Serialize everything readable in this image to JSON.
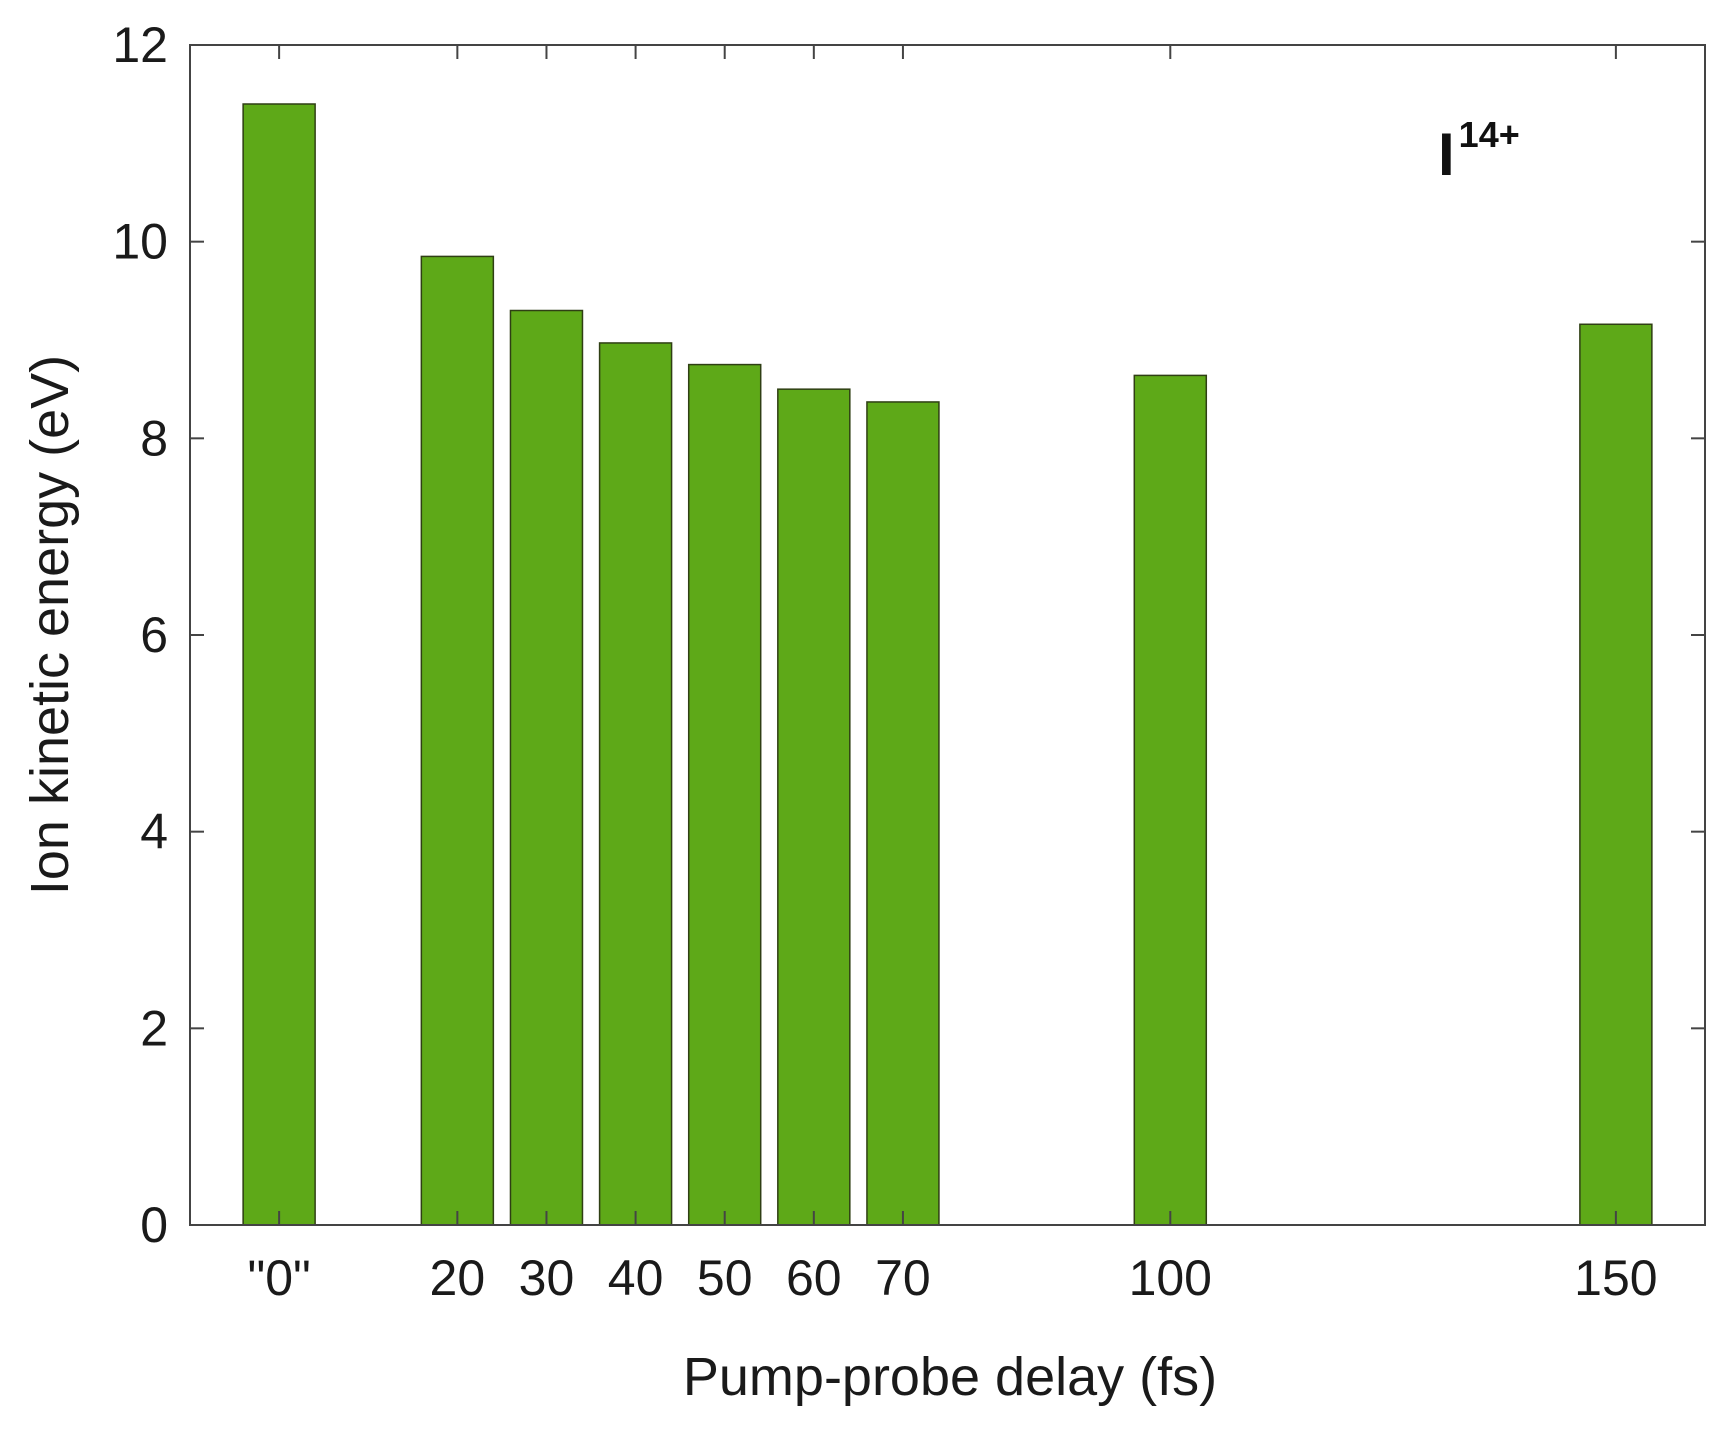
{
  "chart_data": {
    "type": "bar",
    "x_positions": [
      0,
      20,
      30,
      40,
      50,
      60,
      70,
      100,
      150
    ],
    "categories": [
      "\"0\"",
      "20",
      "30",
      "40",
      "50",
      "60",
      "70",
      "100",
      "150"
    ],
    "values": [
      11.4,
      9.85,
      9.3,
      8.97,
      8.75,
      8.5,
      8.37,
      8.64,
      9.16
    ],
    "xlabel": "Pump-probe delay (fs)",
    "ylabel": "Ion kinetic energy (eV)",
    "xlim": [
      -10,
      160
    ],
    "ylim": [
      0,
      12
    ],
    "yticks": [
      0,
      2,
      4,
      6,
      8,
      10,
      12
    ],
    "annotation": {
      "base": "I",
      "superscript": "14+"
    },
    "grid": false,
    "legend": "none",
    "colors": {
      "bar_fill": "#5ea918",
      "bar_edge": "#2f3f14",
      "axis": "#444444"
    }
  }
}
